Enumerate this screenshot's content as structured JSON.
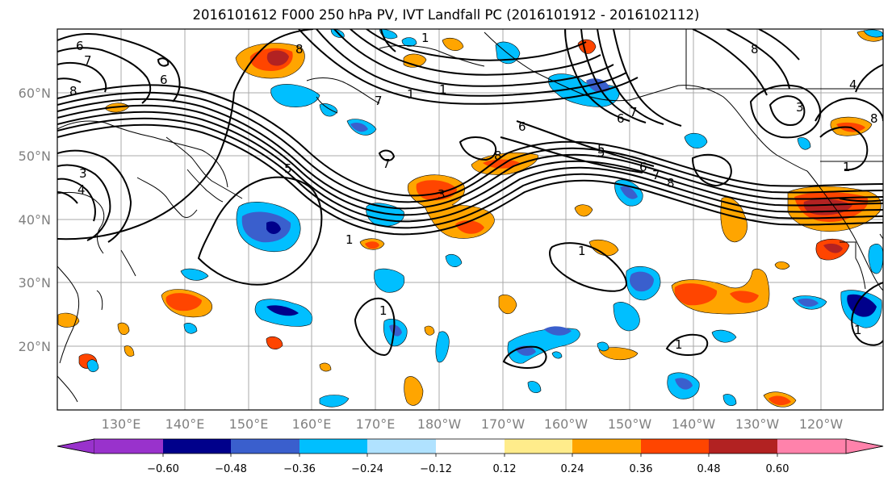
{
  "title": "2016101612 F000 250 hPa PV, IVT Landfall PC (2016101912 - 2016102112)",
  "latitude_labels": [
    "60°N",
    "50°N",
    "40°N",
    "30°N",
    "20°N"
  ],
  "longitude_labels": [
    "130°E",
    "140°E",
    "150°E",
    "160°E",
    "170°E",
    "180°W",
    "170°W",
    "160°W",
    "150°W",
    "140°W",
    "130°W",
    "120°W"
  ],
  "colorbar": {
    "tick_labels": [
      "−0.60",
      "−0.48",
      "−0.36",
      "−0.24",
      "−0.12",
      "0.12",
      "0.24",
      "0.36",
      "0.48",
      "0.60"
    ],
    "colors": [
      "#9932cc",
      "#00008b",
      "#3a5fcd",
      "#00bfff",
      "#b0e2ff",
      "#ffffff",
      "#ffec8b",
      "#ffa500",
      "#ff4500",
      "#b22222",
      "#ff82ab"
    ]
  },
  "contour_labels": [
    "6",
    "7",
    "8",
    "6",
    "8",
    "1",
    "1",
    "7",
    "6",
    "7",
    "5",
    "5",
    "8",
    "3",
    "4",
    "3",
    "6",
    "7",
    "8",
    "7",
    "6",
    "5",
    "8",
    "1",
    "1",
    "1",
    "1",
    "1",
    "1",
    "8",
    "4",
    "3",
    "1"
  ],
  "colors": {
    "positive_strong": "#ff4500",
    "positive": "#ffa500",
    "positive_weak": "#ffec8b",
    "negative_weak": "#b0e2ff",
    "negative": "#00bfff",
    "negative_strong": "#3a5fcd",
    "negative_max": "#00008b",
    "positive_max": "#b22222"
  }
}
